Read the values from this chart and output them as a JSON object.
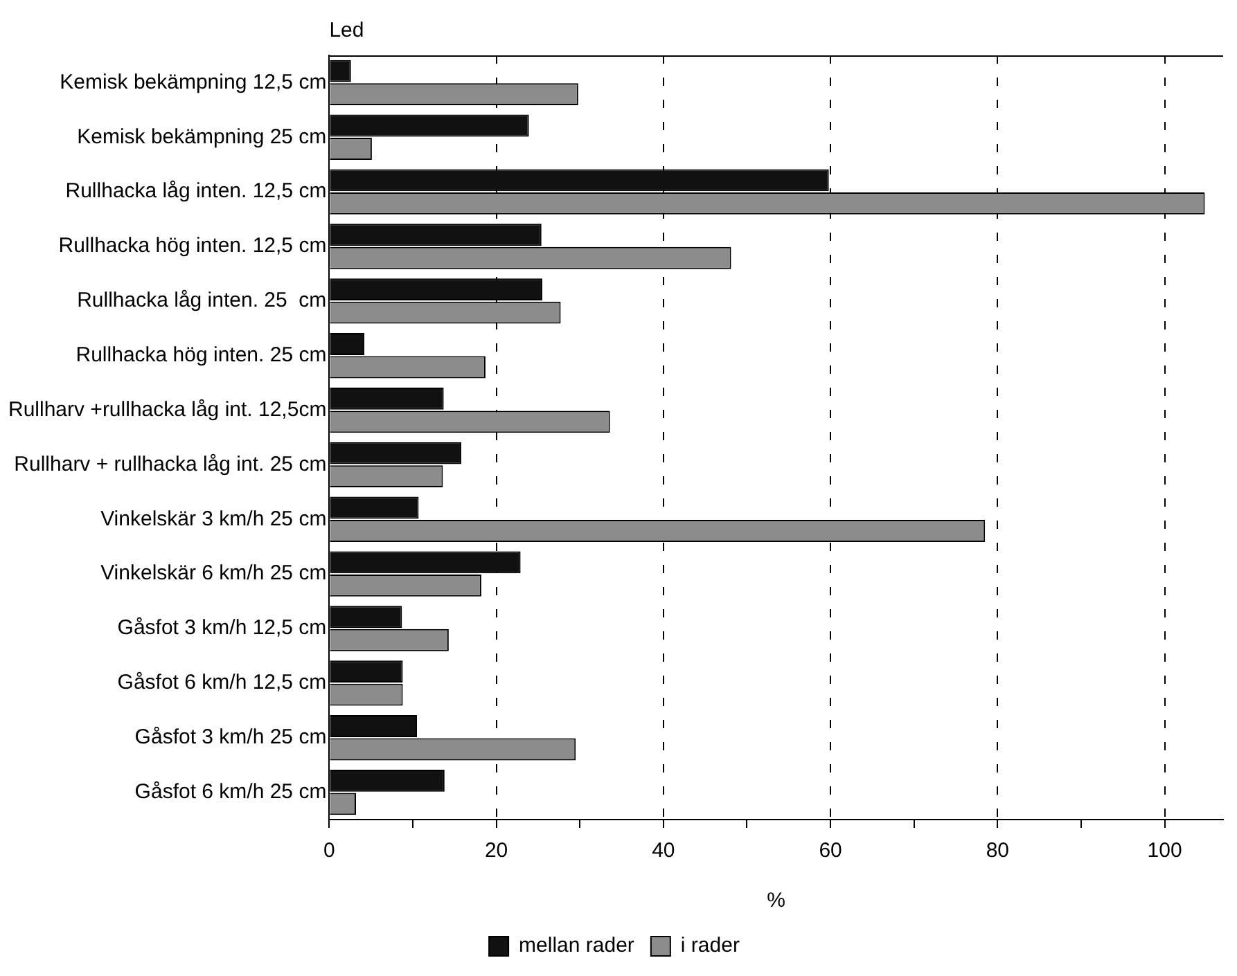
{
  "chart_data": {
    "type": "bar",
    "orientation": "horizontal",
    "ylabel": "Led",
    "xlabel": "%",
    "categories": [
      "Kemisk bekämpning 12,5 cm",
      "Kemisk bekämpning 25 cm",
      "Rullhacka låg inten. 12,5 cm",
      "Rullhacka hög inten. 12,5 cm",
      "Rullhacka låg inten. 25  cm",
      "Rullhacka hög inten. 25 cm",
      "Rullharv +rullhacka låg int. 12,5cm",
      "Rullharv + rullhacka låg int. 25 cm",
      "Vinkelskär 3 km/h 25 cm",
      "Vinkelskär 6 km/h 25 cm",
      "Gåsfot 3 km/h 12,5 cm",
      "Gåsfot 6 km/h 12,5 cm",
      "Gåsfot 3 km/h 25 cm",
      "Gåsfot 6 km/h 25 cm"
    ],
    "series": [
      {
        "name": "mellan rader",
        "color": "#111111",
        "values": [
          2.6,
          23.9,
          59.8,
          25.4,
          25.5,
          4.2,
          13.7,
          15.8,
          10.7,
          22.9,
          8.7,
          8.8,
          10.5,
          13.8
        ]
      },
      {
        "name": "i rader",
        "color": "#8c8c8c",
        "values": [
          29.8,
          5.1,
          104.8,
          48.1,
          27.7,
          18.7,
          33.6,
          13.6,
          78.5,
          18.2,
          14.3,
          8.8,
          29.5,
          3.2
        ]
      }
    ],
    "xlim": [
      0,
      107
    ],
    "xticks": [
      0,
      {
        "value": 10,
        "label": null
      },
      20,
      {
        "value": 30,
        "label": null
      },
      40,
      {
        "value": 50,
        "label": null
      },
      60,
      {
        "value": 70,
        "label": null
      },
      80,
      {
        "value": 90,
        "label": null
      },
      100
    ],
    "grid": "x",
    "legend": "bottom"
  }
}
